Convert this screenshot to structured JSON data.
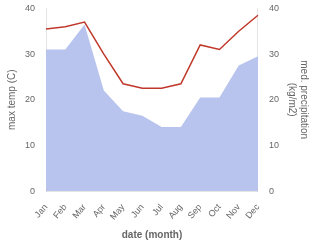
{
  "chart_data": {
    "type": "line",
    "xlabel": "date (month)",
    "ylabel": "max temp (C)",
    "y2label": "med. precipitation\n(kg/m2)",
    "categories": [
      "Jan",
      "Feb",
      "Mar",
      "Apr",
      "May",
      "Jun",
      "Jul",
      "Aug",
      "Sep",
      "Oct",
      "Nov",
      "Dec"
    ],
    "series": [
      {
        "type": "area",
        "axis": "y",
        "color": "#b8c4ed",
        "values": [
          31.0,
          31.0,
          36.5,
          22.0,
          17.5,
          16.5,
          14.0,
          14.0,
          20.5,
          20.5,
          27.5,
          29.5
        ]
      },
      {
        "type": "line",
        "axis": "y2",
        "color": "#c0392b",
        "values": [
          35.5,
          36.0,
          37.0,
          30.0,
          23.5,
          22.5,
          22.5,
          23.5,
          32.0,
          31.0,
          35.0,
          38.5
        ]
      }
    ],
    "ylim": [
      0,
      40
    ],
    "yticks": [
      0,
      10,
      20,
      30,
      40
    ],
    "y2lim": [
      0,
      40
    ],
    "y2ticks": [
      0,
      10,
      20,
      30,
      40
    ],
    "grid": false
  }
}
